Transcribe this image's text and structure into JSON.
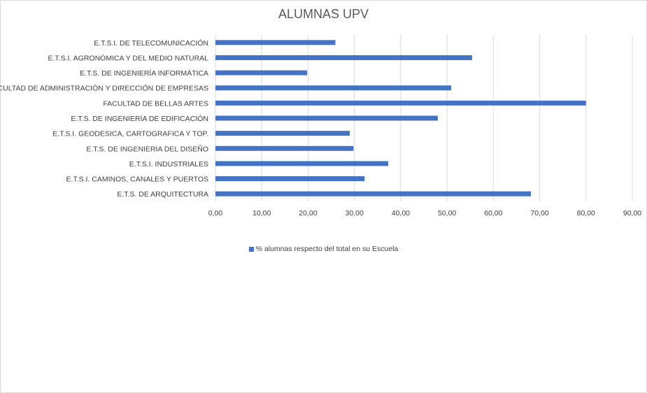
{
  "chart_data": {
    "type": "bar",
    "orientation": "horizontal",
    "title": "ALUMNAS UPV",
    "categories": [
      "E.T.S.I. DE TELECOMUNICACIÓN",
      "E.T.S.I. AGRONÓMICA Y DEL MEDIO NATURAL",
      "E.T.S. DE INGENIERÍA INFORMÁTICA",
      "FACULTAD DE ADMINISTRACIÓN Y DIRECCIÓN DE EMPRESAS",
      "FACULTAD DE BELLAS ARTES",
      "E.T.S. DE INGENIERÍA DE EDIFICACIÓN",
      "E.T.S.I. GEODESICA, CARTOGRAFICA Y TOP.",
      "E.T.S. DE INGENIERIA DEL DISEÑO",
      "E.T.S.I. INDUSTRIALES",
      "E.T.S.I. CAMINOS, CANALES Y PUERTOS",
      "E.T.S. DE ARQUITECTURA"
    ],
    "series": [
      {
        "name": "% alumnas respecto del total en su Escuela",
        "color": "#4472c4",
        "values": [
          25.9,
          55.4,
          19.8,
          50.9,
          80.0,
          48.0,
          29.0,
          29.8,
          37.3,
          32.2,
          68.1
        ]
      }
    ],
    "xlim": [
      0,
      90
    ],
    "xticks": [
      "0,00",
      "10,00",
      "20,00",
      "30,00",
      "40,00",
      "50,00",
      "60,00",
      "70,00",
      "80,00",
      "90,00"
    ],
    "grid": true,
    "legend_position": "bottom"
  }
}
